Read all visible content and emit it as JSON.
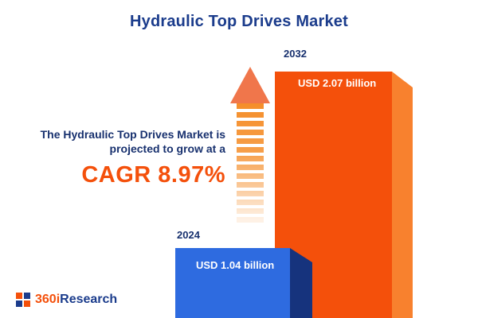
{
  "title": "Hydraulic Top Drives Market",
  "annotation": {
    "line1": "The Hydraulic Top Drives Market is",
    "line2": "projected to grow at a",
    "cagr": "CAGR 8.97%"
  },
  "bars": {
    "blue": {
      "year": "2024",
      "value_label": "USD 1.04 billion"
    },
    "orange": {
      "year": "2032",
      "value_label": "USD 2.07 billion"
    }
  },
  "logo": {
    "part1": "360i",
    "part2": "Research"
  },
  "colors": {
    "navy": "#1b3c8c",
    "text_navy": "#17306e",
    "orange": "#f4500b",
    "orange_light": "#f8812e",
    "blue": "#2e6be0",
    "blue_dark": "#16337d",
    "arrow_shaft": "#f58e2a",
    "arrow_head": "#f0764b"
  },
  "chart_data": {
    "type": "bar",
    "title": "Hydraulic Top Drives Market",
    "categories": [
      "2024",
      "2032"
    ],
    "values": [
      1.04,
      2.07
    ],
    "unit": "USD billion",
    "value_labels": [
      "USD 1.04 billion",
      "USD 2.07 billion"
    ],
    "series_colors": [
      "#2e6be0",
      "#f4500b"
    ],
    "cagr_percent": 8.97,
    "annotations": [
      "The Hydraulic Top Drives Market is projected to grow at a",
      "CAGR 8.97%"
    ],
    "legend": false,
    "grid": false,
    "xlabel": "",
    "ylabel": ""
  }
}
